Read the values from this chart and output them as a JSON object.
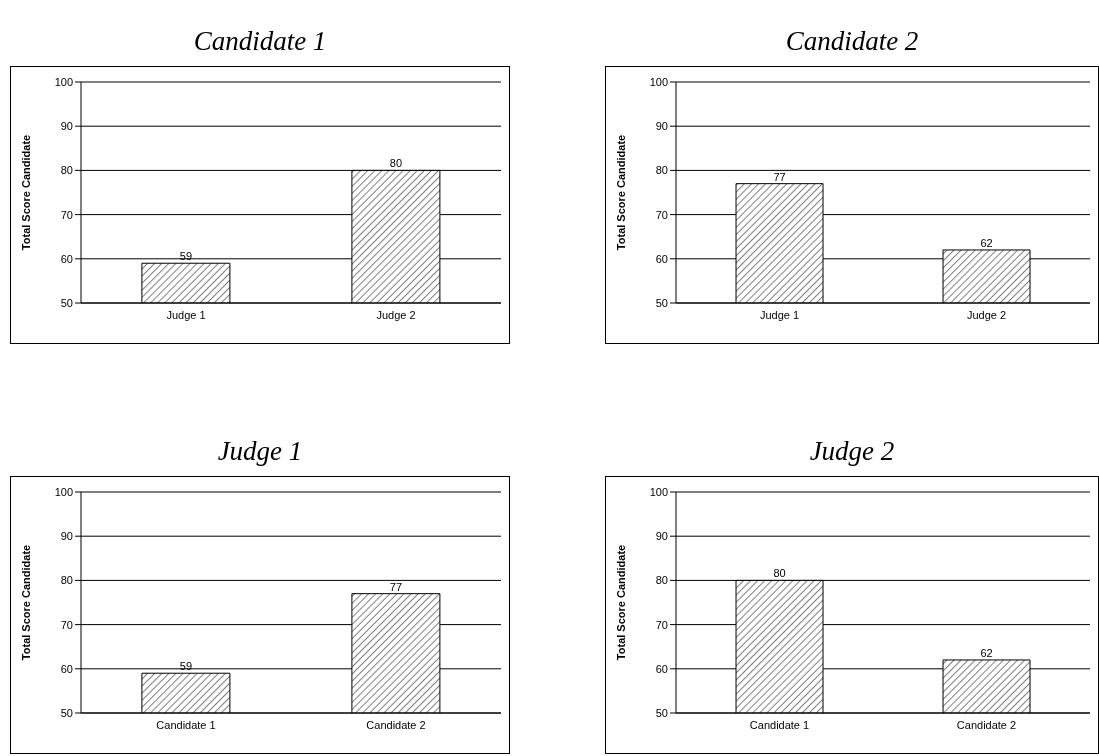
{
  "chart_data": [
    {
      "type": "bar",
      "title": "Candidate 1",
      "ylabel": "Total Score Candidate",
      "categories": [
        "Judge 1",
        "Judge 2"
      ],
      "values": [
        59,
        80
      ],
      "color": "#000000",
      "ylim": [
        50,
        100
      ],
      "yticks": [
        50,
        60,
        70,
        80,
        90,
        100
      ],
      "grid": "y",
      "data_labels": true,
      "legend": false
    },
    {
      "type": "bar",
      "title": "Candidate 2",
      "ylabel": "Total Score Candidate",
      "categories": [
        "Judge 1",
        "Judge 2"
      ],
      "values": [
        77,
        62
      ],
      "color": "#000000",
      "ylim": [
        50,
        100
      ],
      "yticks": [
        50,
        60,
        70,
        80,
        90,
        100
      ],
      "grid": "y",
      "data_labels": true,
      "legend": false
    },
    {
      "type": "bar",
      "title": "Judge 1",
      "ylabel": "Total Score Candidate",
      "categories": [
        "Candidate 1",
        "Candidate 2"
      ],
      "values": [
        59,
        77
      ],
      "color": "#000000",
      "ylim": [
        50,
        100
      ],
      "yticks": [
        50,
        60,
        70,
        80,
        90,
        100
      ],
      "grid": "y",
      "data_labels": true,
      "legend": false
    },
    {
      "type": "bar",
      "title": "Judge 2",
      "ylabel": "Total Score Candidate",
      "categories": [
        "Candidate 1",
        "Candidate 2"
      ],
      "values": [
        80,
        62
      ],
      "color": "#000000",
      "ylim": [
        50,
        100
      ],
      "yticks": [
        50,
        60,
        70,
        80,
        90,
        100
      ],
      "grid": "y",
      "data_labels": true,
      "legend": false
    }
  ]
}
